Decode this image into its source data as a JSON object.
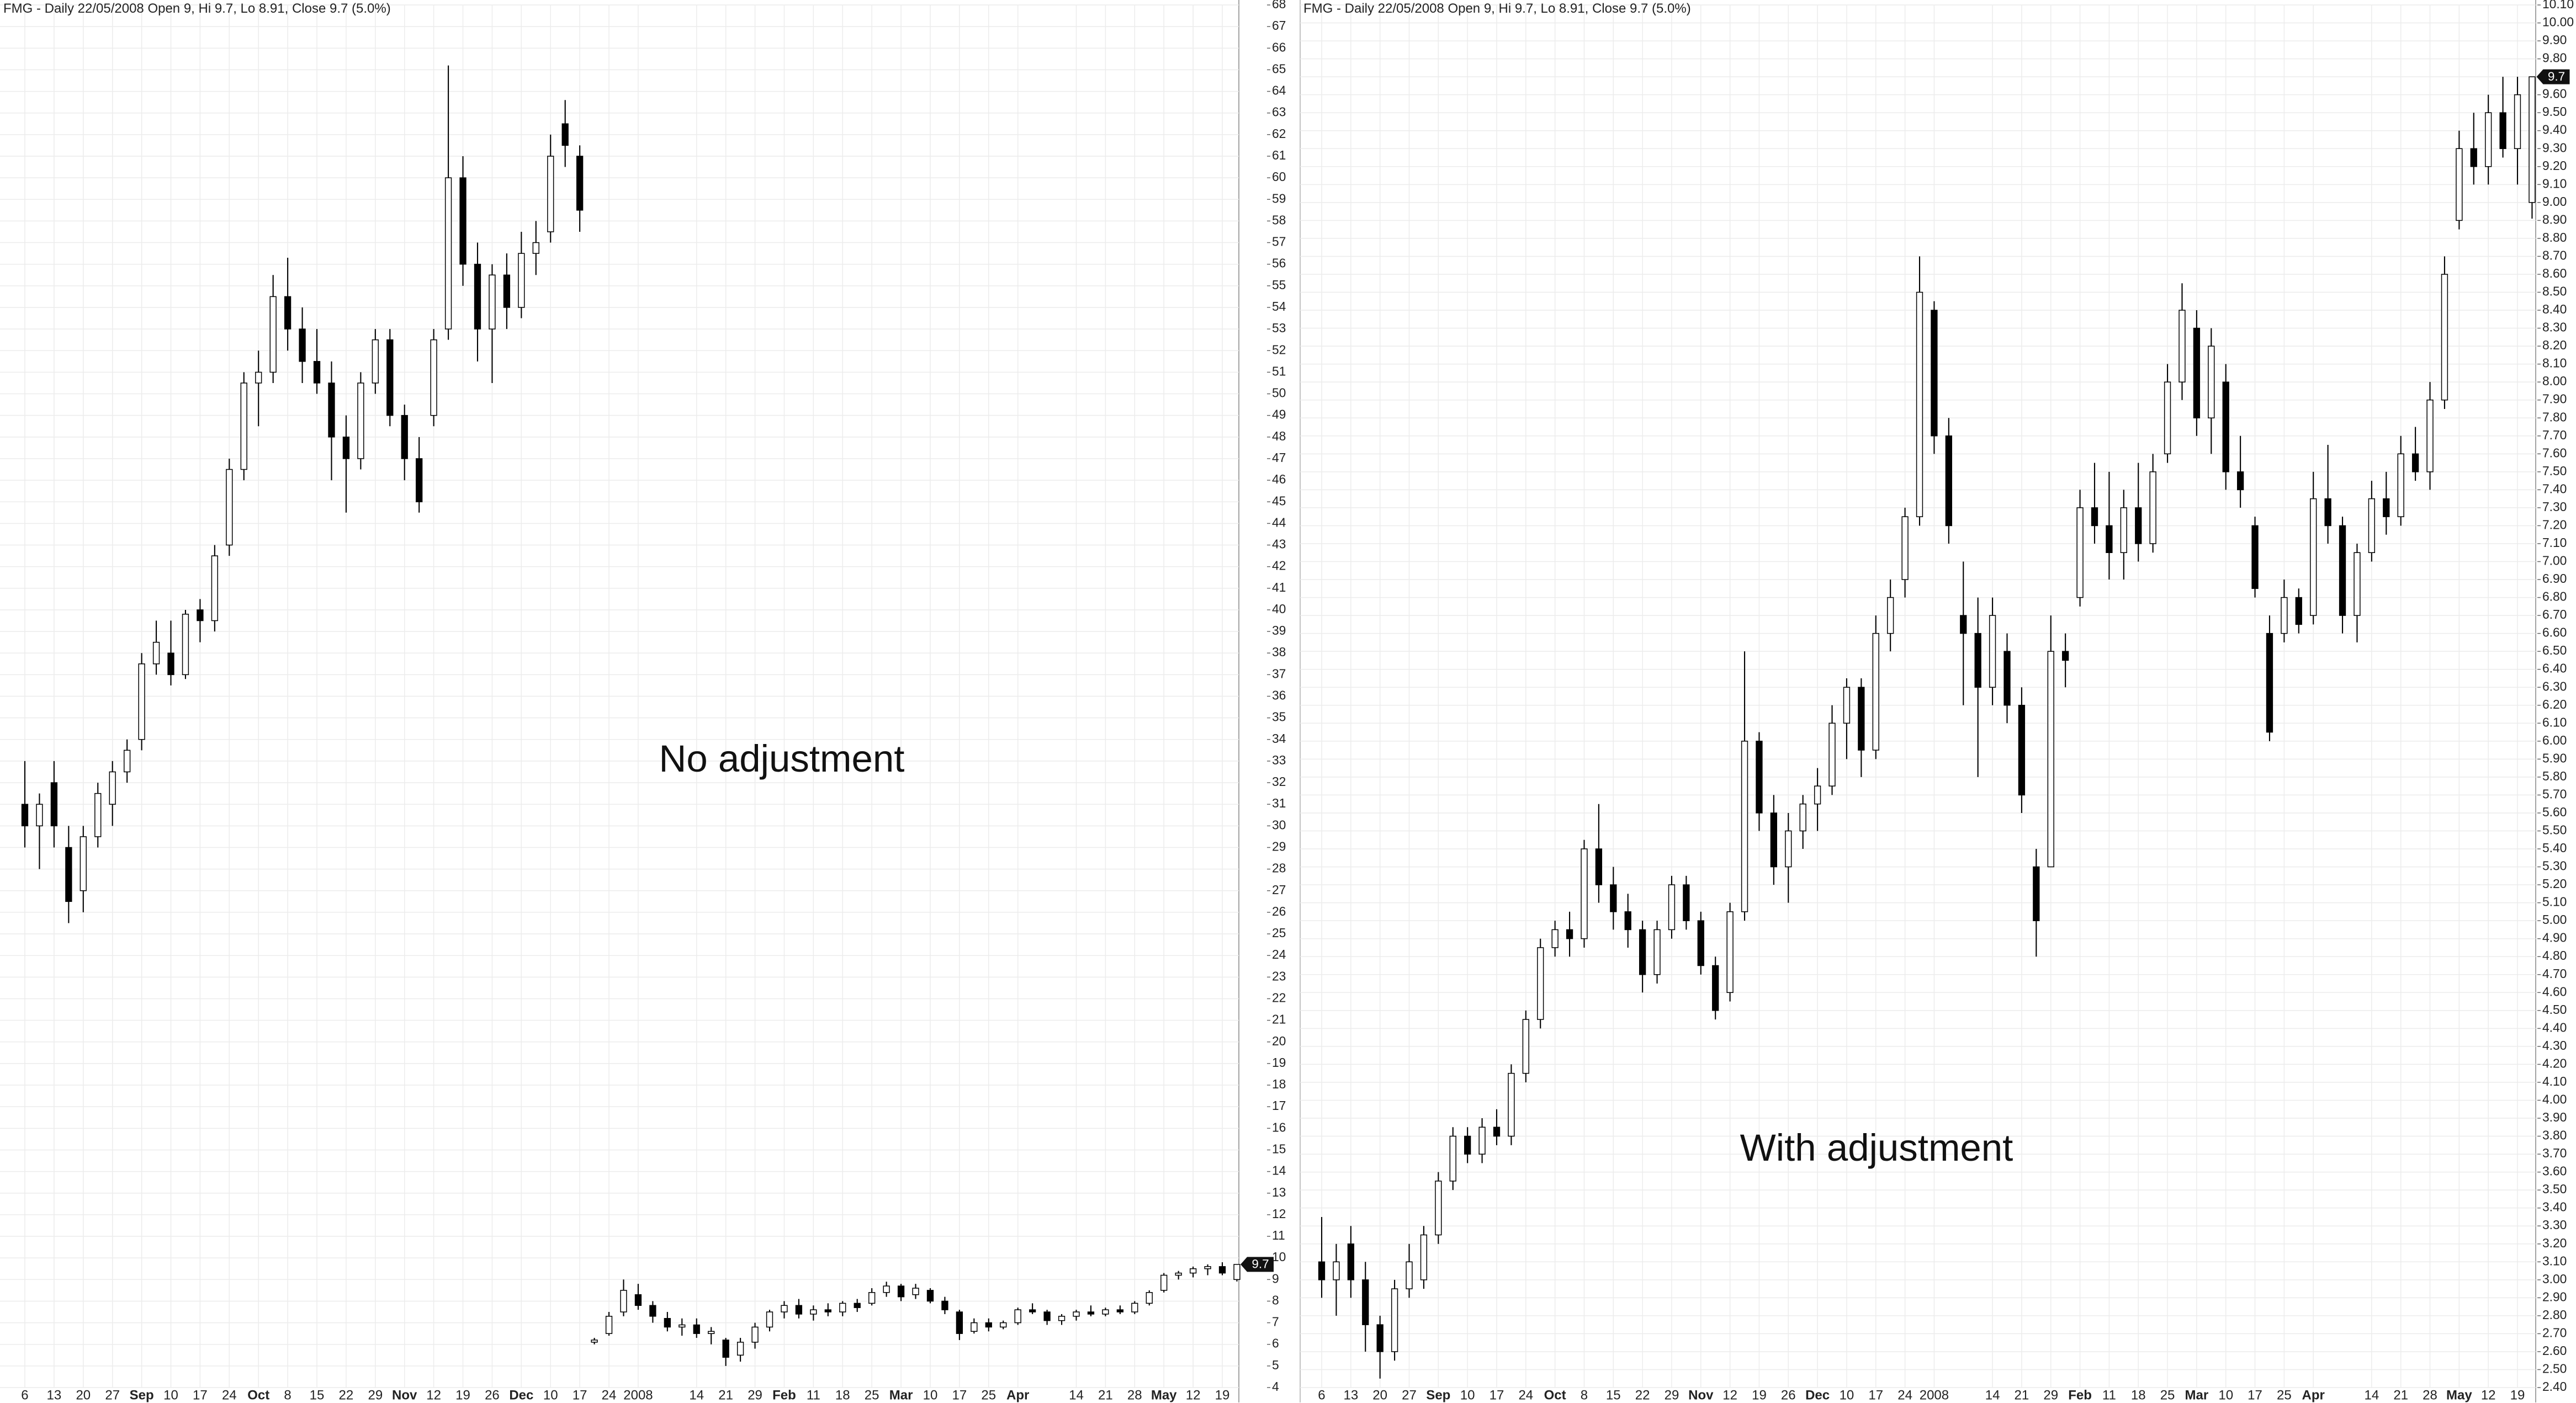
{
  "chart_data": [
    {
      "type": "candlestick",
      "title": "FMG - Daily 22/05/2008 Open 9, Hi 9.7, Lo 8.91, Close 9.7 (5.0%)",
      "annotation": "No adjustment",
      "last_value": 9.7,
      "up_color": "#ffffff",
      "down_color": "#000000",
      "grid": true,
      "categories": [
        "6",
        null,
        "13",
        null,
        "20",
        null,
        "27",
        null,
        "Sep",
        null,
        "10",
        null,
        "17",
        null,
        "24",
        null,
        "Oct",
        null,
        "8",
        null,
        "15",
        null,
        "22",
        null,
        "29",
        null,
        "Nov",
        null,
        "12",
        null,
        "19",
        null,
        "26",
        null,
        "Dec",
        null,
        "10",
        null,
        "17",
        null,
        "24",
        null,
        "2008",
        null,
        null,
        null,
        "14",
        null,
        "21",
        null,
        "29",
        null,
        "Feb",
        null,
        "11",
        null,
        "18",
        null,
        "25",
        null,
        "Mar",
        null,
        "10",
        null,
        "17",
        null,
        "25",
        null,
        "Apr",
        null,
        null,
        null,
        "14",
        null,
        "21",
        null,
        "28",
        null,
        "May",
        null,
        "12",
        null,
        "19",
        null
      ],
      "open": [
        31,
        30,
        32,
        29,
        27,
        29.5,
        31,
        32.5,
        34,
        37.5,
        38,
        37,
        40,
        39.5,
        43,
        46.5,
        50.5,
        51,
        54.5,
        53,
        51.5,
        50.5,
        48,
        47,
        50.5,
        52.5,
        49,
        47,
        49,
        53,
        60,
        56,
        53,
        55.5,
        54,
        56.5,
        57.5,
        62.5,
        61,
        6.1,
        6.5,
        7.5,
        8.3,
        7.8,
        7.2,
        6.8,
        6.9,
        6.5,
        6.2,
        5.5,
        6.1,
        6.8,
        7.5,
        7.8,
        7.4,
        7.6,
        7.5,
        7.9,
        7.9,
        8.4,
        8.7,
        8.3,
        8.5,
        8,
        7.5,
        6.6,
        7,
        6.8,
        7,
        7.6,
        7.5,
        7.1,
        7.3,
        7.5,
        7.4,
        7.6,
        7.5,
        7.9,
        8.5,
        9.2,
        9.3,
        9.5,
        9.6,
        9
      ],
      "high": [
        33,
        31.5,
        33,
        30,
        30,
        32,
        33,
        34,
        38,
        39.5,
        39.5,
        40,
        40.5,
        43,
        47,
        51,
        52,
        55.5,
        56.3,
        54,
        53,
        51.5,
        49,
        51,
        53,
        53,
        49.5,
        48,
        53,
        65.2,
        61,
        57,
        56,
        56.5,
        57.5,
        58,
        62,
        63.6,
        61.5,
        6.3,
        7.5,
        9,
        8.8,
        8,
        7.5,
        7.2,
        7.2,
        6.8,
        6.3,
        6.3,
        7,
        7.6,
        8,
        8.1,
        7.8,
        7.9,
        8,
        8.1,
        8.6,
        8.9,
        8.8,
        8.8,
        8.6,
        8.2,
        7.6,
        7.2,
        7.2,
        7.1,
        7.7,
        7.9,
        7.6,
        7.4,
        7.6,
        7.8,
        7.7,
        7.8,
        8,
        8.5,
        9.3,
        9.4,
        9.6,
        9.7,
        9.8,
        9.7
      ],
      "low": [
        29,
        28,
        29,
        25.5,
        26,
        29,
        30,
        32,
        33.5,
        37,
        36.5,
        36.8,
        38.5,
        39,
        42.5,
        46,
        48.5,
        50.5,
        52,
        50.5,
        50,
        46,
        44.5,
        46.5,
        50,
        48.5,
        46,
        44.5,
        48.5,
        52.5,
        55,
        51.5,
        50.5,
        53,
        53.5,
        55.5,
        57,
        60.5,
        57.5,
        6,
        6.4,
        7.3,
        7.6,
        7,
        6.6,
        6.4,
        6.3,
        6,
        5,
        5.2,
        5.8,
        6.6,
        7.2,
        7.2,
        7.1,
        7.3,
        7.3,
        7.5,
        7.8,
        8.2,
        8,
        8.1,
        7.9,
        7.4,
        6.2,
        6.5,
        6.6,
        6.7,
        6.9,
        7.4,
        6.9,
        6.9,
        7.1,
        7.3,
        7.3,
        7.4,
        7.4,
        7.8,
        8.4,
        9,
        9.1,
        9.2,
        9.2,
        8.91
      ],
      "close": [
        30,
        31,
        30,
        26.5,
        29.5,
        31.5,
        32.5,
        33.5,
        37.5,
        38.5,
        37,
        39.8,
        39.5,
        42.5,
        46.5,
        50.5,
        51,
        54.5,
        53,
        51.5,
        50.5,
        48,
        47,
        50.5,
        52.5,
        49,
        47,
        45,
        52.5,
        60,
        56,
        53,
        55.5,
        54,
        56.5,
        57,
        61,
        61.5,
        58.5,
        6.2,
        7.3,
        8.5,
        7.8,
        7.3,
        6.8,
        6.9,
        6.5,
        6.6,
        5.4,
        6.1,
        6.8,
        7.5,
        7.8,
        7.4,
        7.6,
        7.5,
        7.9,
        7.7,
        8.4,
        8.7,
        8.2,
        8.6,
        8,
        7.6,
        6.5,
        7,
        6.8,
        7,
        7.6,
        7.5,
        7.1,
        7.3,
        7.5,
        7.4,
        7.6,
        7.5,
        7.9,
        8.4,
        9.2,
        9.3,
        9.5,
        9.6,
        9.3,
        9.7
      ],
      "ylim": [
        4,
        68
      ],
      "yticks": [
        4,
        5,
        6,
        7,
        8,
        9,
        10,
        11,
        12,
        13,
        14,
        15,
        16,
        17,
        18,
        19,
        20,
        21,
        22,
        23,
        24,
        25,
        26,
        27,
        28,
        29,
        30,
        31,
        32,
        33,
        34,
        35,
        36,
        37,
        38,
        39,
        40,
        41,
        42,
        43,
        44,
        45,
        46,
        47,
        48,
        49,
        50,
        51,
        52,
        53,
        54,
        55,
        56,
        57,
        58,
        59,
        60,
        61,
        62,
        63,
        64,
        65,
        66,
        67,
        68
      ]
    },
    {
      "type": "candlestick",
      "title": "FMG - Daily 22/05/2008 Open 9, Hi 9.7, Lo 8.91, Close 9.7 (5.0%)",
      "annotation": "With adjustment",
      "last_value": 9.7,
      "up_color": "#ffffff",
      "down_color": "#000000",
      "grid": true,
      "categories": [
        "6",
        null,
        "13",
        null,
        "20",
        null,
        "27",
        null,
        "Sep",
        null,
        "10",
        null,
        "17",
        null,
        "24",
        null,
        "Oct",
        null,
        "8",
        null,
        "15",
        null,
        "22",
        null,
        "29",
        null,
        "Nov",
        null,
        "12",
        null,
        "19",
        null,
        "26",
        null,
        "Dec",
        null,
        "10",
        null,
        "17",
        null,
        "24",
        null,
        "2008",
        null,
        null,
        null,
        "14",
        null,
        "21",
        null,
        "29",
        null,
        "Feb",
        null,
        "11",
        null,
        "18",
        null,
        "25",
        null,
        "Mar",
        null,
        "10",
        null,
        "17",
        null,
        "25",
        null,
        "Apr",
        null,
        null,
        null,
        "14",
        null,
        "21",
        null,
        "28",
        null,
        "May",
        null,
        "12",
        null,
        "19",
        null
      ],
      "open": [
        3.1,
        3,
        3.2,
        3,
        2.75,
        2.6,
        2.95,
        3,
        3.25,
        3.55,
        3.8,
        3.7,
        3.85,
        3.8,
        4.15,
        4.45,
        4.85,
        4.95,
        4.9,
        5.4,
        5.2,
        5.05,
        4.95,
        4.7,
        4.95,
        5.2,
        5,
        4.75,
        4.6,
        5.05,
        6,
        5.6,
        5.3,
        5.5,
        5.65,
        5.75,
        6.1,
        6.3,
        5.95,
        6.6,
        6.9,
        7.25,
        8.4,
        7.7,
        6.7,
        6.6,
        6.3,
        6.5,
        6.2,
        5.3,
        5.3,
        6.5,
        6.8,
        7.3,
        7.2,
        7.05,
        7.3,
        7.1,
        7.6,
        8,
        8.3,
        7.8,
        8,
        7.5,
        7.2,
        6.6,
        6.6,
        6.8,
        6.7,
        7.35,
        7.2,
        6.7,
        7.05,
        7.35,
        7.25,
        7.6,
        7.5,
        7.9,
        8.9,
        9.3,
        9.2,
        9.5,
        9.3,
        9
      ],
      "high": [
        3.35,
        3.2,
        3.3,
        3.1,
        2.8,
        3,
        3.2,
        3.3,
        3.6,
        3.85,
        3.85,
        3.9,
        3.95,
        4.2,
        4.5,
        4.9,
        5,
        5.05,
        5.45,
        5.65,
        5.3,
        5.15,
        5,
        5,
        5.25,
        5.25,
        5.05,
        4.8,
        5.1,
        6.5,
        6.05,
        5.7,
        5.6,
        5.7,
        5.85,
        6.2,
        6.35,
        6.35,
        6.7,
        6.9,
        7.3,
        8.7,
        8.45,
        7.8,
        7,
        6.8,
        6.8,
        6.6,
        6.3,
        5.4,
        6.7,
        6.6,
        7.4,
        7.55,
        7.5,
        7.4,
        7.55,
        7.6,
        8.1,
        8.55,
        8.4,
        8.3,
        8.1,
        7.7,
        7.25,
        6.7,
        6.9,
        6.85,
        7.5,
        7.65,
        7.25,
        7.1,
        7.45,
        7.5,
        7.7,
        7.75,
        8,
        8.7,
        9.4,
        9.5,
        9.6,
        9.7,
        9.7,
        9.7
      ],
      "low": [
        2.9,
        2.8,
        2.9,
        2.6,
        2.45,
        2.55,
        2.9,
        2.95,
        3.2,
        3.5,
        3.65,
        3.65,
        3.75,
        3.75,
        4.1,
        4.4,
        4.8,
        4.8,
        4.85,
        5.1,
        4.95,
        4.85,
        4.6,
        4.65,
        4.9,
        4.95,
        4.7,
        4.45,
        4.55,
        5,
        5.5,
        5.2,
        5.1,
        5.4,
        5.5,
        5.7,
        5.9,
        5.8,
        5.9,
        6.5,
        6.8,
        7.2,
        7.6,
        7.1,
        6.2,
        5.8,
        6.2,
        6.1,
        5.6,
        4.8,
        5.3,
        6.3,
        6.75,
        7.1,
        6.9,
        6.9,
        7,
        7.05,
        7.55,
        7.9,
        7.7,
        7.6,
        7.4,
        7.3,
        6.8,
        6,
        6.55,
        6.6,
        6.65,
        7.1,
        6.6,
        6.55,
        7,
        7.15,
        7.2,
        7.45,
        7.4,
        7.85,
        8.85,
        9.1,
        9.1,
        9.25,
        9.1,
        8.91
      ],
      "close": [
        3,
        3.1,
        3,
        2.75,
        2.6,
        2.95,
        3.1,
        3.25,
        3.55,
        3.8,
        3.7,
        3.85,
        3.8,
        4.15,
        4.45,
        4.85,
        4.95,
        4.9,
        5.4,
        5.2,
        5.05,
        4.95,
        4.7,
        4.95,
        5.2,
        5,
        4.75,
        4.5,
        5.05,
        6,
        5.6,
        5.3,
        5.5,
        5.65,
        5.75,
        6.1,
        6.3,
        5.95,
        6.6,
        6.8,
        7.25,
        8.5,
        7.7,
        7.2,
        6.6,
        6.3,
        6.7,
        6.2,
        5.7,
        5,
        6.5,
        6.45,
        7.3,
        7.2,
        7.05,
        7.3,
        7.1,
        7.5,
        8,
        8.4,
        7.8,
        8.2,
        7.5,
        7.4,
        6.85,
        6.05,
        6.8,
        6.65,
        7.35,
        7.2,
        6.7,
        7.05,
        7.35,
        7.25,
        7.6,
        7.5,
        7.9,
        8.6,
        9.3,
        9.2,
        9.5,
        9.3,
        9.6,
        9.7
      ],
      "ylim": [
        2.4,
        10.1
      ],
      "yticks": [
        {
          "value": 2.4,
          "label": "2.40"
        },
        {
          "value": 2.5,
          "label": "2.50"
        },
        {
          "value": 2.6,
          "label": "2.60"
        },
        {
          "value": 2.7,
          "label": "2.70"
        },
        {
          "value": 2.8,
          "label": "2.80"
        },
        {
          "value": 2.9,
          "label": "2.90"
        },
        {
          "value": 3.0,
          "label": "3.00"
        },
        {
          "value": 3.1,
          "label": "3.10"
        },
        {
          "value": 3.2,
          "label": "3.20"
        },
        {
          "value": 3.3,
          "label": "3.30"
        },
        {
          "value": 3.4,
          "label": "3.40"
        },
        {
          "value": 3.5,
          "label": "3.50"
        },
        {
          "value": 3.6,
          "label": "3.60"
        },
        {
          "value": 3.7,
          "label": "3.70"
        },
        {
          "value": 3.8,
          "label": "3.80"
        },
        {
          "value": 3.9,
          "label": "3.90"
        },
        {
          "value": 4.0,
          "label": "4.00"
        },
        {
          "value": 4.1,
          "label": "4.10"
        },
        {
          "value": 4.2,
          "label": "4.20"
        },
        {
          "value": 4.3,
          "label": "4.30"
        },
        {
          "value": 4.4,
          "label": "4.40"
        },
        {
          "value": 4.5,
          "label": "4.50"
        },
        {
          "value": 4.6,
          "label": "4.60"
        },
        {
          "value": 4.7,
          "label": "4.70"
        },
        {
          "value": 4.8,
          "label": "4.80"
        },
        {
          "value": 4.9,
          "label": "4.90"
        },
        {
          "value": 5.0,
          "label": "5.00"
        },
        {
          "value": 5.1,
          "label": "5.10"
        },
        {
          "value": 5.2,
          "label": "5.20"
        },
        {
          "value": 5.3,
          "label": "5.30"
        },
        {
          "value": 5.4,
          "label": "5.40"
        },
        {
          "value": 5.5,
          "label": "5.50"
        },
        {
          "value": 5.6,
          "label": "5.60"
        },
        {
          "value": 5.7,
          "label": "5.70"
        },
        {
          "value": 5.8,
          "label": "5.80"
        },
        {
          "value": 5.9,
          "label": "5.90"
        },
        {
          "value": 6.0,
          "label": "6.00"
        },
        {
          "value": 6.1,
          "label": "6.10"
        },
        {
          "value": 6.2,
          "label": "6.20"
        },
        {
          "value": 6.3,
          "label": "6.30"
        },
        {
          "value": 6.4,
          "label": "6.40"
        },
        {
          "value": 6.5,
          "label": "6.50"
        },
        {
          "value": 6.6,
          "label": "6.60"
        },
        {
          "value": 6.7,
          "label": "6.70"
        },
        {
          "value": 6.8,
          "label": "6.80"
        },
        {
          "value": 6.9,
          "label": "6.90"
        },
        {
          "value": 7.0,
          "label": "7.00"
        },
        {
          "value": 7.1,
          "label": "7.10"
        },
        {
          "value": 7.2,
          "label": "7.20"
        },
        {
          "value": 7.3,
          "label": "7.30"
        },
        {
          "value": 7.4,
          "label": "7.40"
        },
        {
          "value": 7.5,
          "label": "7.50"
        },
        {
          "value": 7.6,
          "label": "7.60"
        },
        {
          "value": 7.7,
          "label": "7.70"
        },
        {
          "value": 7.8,
          "label": "7.80"
        },
        {
          "value": 7.9,
          "label": "7.90"
        },
        {
          "value": 8.0,
          "label": "8.00"
        },
        {
          "value": 8.1,
          "label": "8.10"
        },
        {
          "value": 8.2,
          "label": "8.20"
        },
        {
          "value": 8.3,
          "label": "8.30"
        },
        {
          "value": 8.4,
          "label": "8.40"
        },
        {
          "value": 8.5,
          "label": "8.50"
        },
        {
          "value": 8.6,
          "label": "8.60"
        },
        {
          "value": 8.7,
          "label": "8.70"
        },
        {
          "value": 8.8,
          "label": "8.80"
        },
        {
          "value": 8.9,
          "label": "8.90"
        },
        {
          "value": 9.0,
          "label": "9.00"
        },
        {
          "value": 9.1,
          "label": "9.10"
        },
        {
          "value": 9.2,
          "label": "9.20"
        },
        {
          "value": 9.3,
          "label": "9.30"
        },
        {
          "value": 9.4,
          "label": "9.40"
        },
        {
          "value": 9.5,
          "label": "9.50"
        },
        {
          "value": 9.6,
          "label": "9.60"
        },
        {
          "value": 9.7,
          "label": "9.70"
        },
        {
          "value": 9.8,
          "label": "9.80"
        },
        {
          "value": 9.9,
          "label": "9.90"
        },
        {
          "value": 10.0,
          "label": "10.00"
        },
        {
          "value": 10.1,
          "label": "10.10"
        }
      ]
    }
  ]
}
